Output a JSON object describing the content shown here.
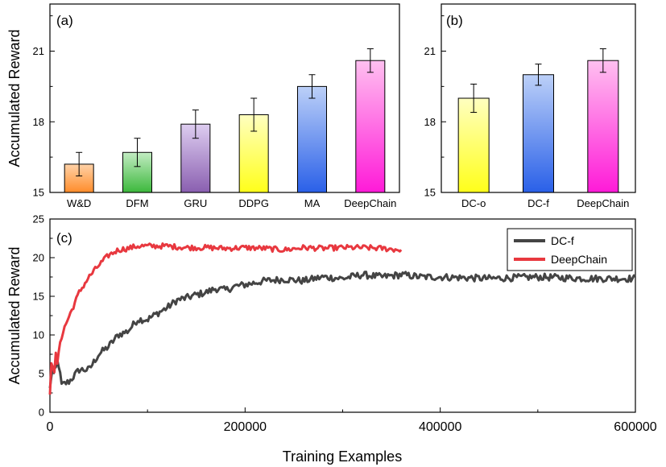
{
  "chart_data": [
    {
      "panel": "(a)",
      "type": "bar",
      "ylabel": "Accumulated Reward",
      "ylim": [
        15,
        23
      ],
      "yticks": [
        "15",
        "18",
        "21"
      ],
      "categories": [
        "W&D",
        "DFM",
        "GRU",
        "DDPG",
        "MA",
        "DeepChain"
      ],
      "values": [
        16.2,
        16.7,
        17.9,
        18.3,
        19.5,
        20.6
      ],
      "errors": [
        0.5,
        0.6,
        0.6,
        0.7,
        0.5,
        0.5
      ],
      "colors": [
        [
          "#ff8c2a",
          "#ffd2a8"
        ],
        [
          "#3cb83c",
          "#c2ecc2"
        ],
        [
          "#8a5fb0",
          "#ddcdf0"
        ],
        [
          "#ffff1a",
          "#ffffc0"
        ],
        [
          "#2a60e8",
          "#bcd0f8"
        ],
        [
          "#ff1ad8",
          "#ffc0f0"
        ]
      ]
    },
    {
      "panel": "(b)",
      "type": "bar",
      "ylim": [
        15,
        23
      ],
      "yticks": [
        "15",
        "18",
        "21"
      ],
      "categories": [
        "DC-o",
        "DC-f",
        "DeepChain"
      ],
      "values": [
        19.0,
        20.0,
        20.6
      ],
      "errors": [
        0.6,
        0.45,
        0.5
      ],
      "colors": [
        [
          "#ffff1a",
          "#ffffc0"
        ],
        [
          "#2a60e8",
          "#bcd0f8"
        ],
        [
          "#ff1ad8",
          "#ffc0f0"
        ]
      ]
    },
    {
      "panel": "(c)",
      "type": "line",
      "xlabel": "Training Examples",
      "ylabel": "Accumulated Reward",
      "xlim": [
        0,
        600000
      ],
      "ylim": [
        0,
        25
      ],
      "xticks": [
        "0",
        "200000",
        "400000",
        "600000"
      ],
      "yticks": [
        "0",
        "5",
        "10",
        "15",
        "20",
        "25"
      ],
      "legend": "top-right",
      "series": [
        {
          "name": "DC-f",
          "color": "#444444",
          "x": [
            0,
            2500,
            5000,
            8000,
            12000,
            20000,
            30000,
            40000,
            50000,
            60000,
            70000,
            80000,
            90000,
            100000,
            110000,
            120000,
            130000,
            140000,
            150000,
            160000,
            170000,
            180000,
            190000,
            200000,
            220000,
            240000,
            260000,
            280000,
            300000,
            320000,
            340000,
            360000,
            380000,
            400000,
            450000,
            500000,
            550000,
            600000
          ],
          "y": [
            3.0,
            6.0,
            5.0,
            7.0,
            3.5,
            4.0,
            5.5,
            5.5,
            7.5,
            8.5,
            10.0,
            10.5,
            12.0,
            12.0,
            12.8,
            13.5,
            14.5,
            14.8,
            15.2,
            15.5,
            16.0,
            15.8,
            16.3,
            16.5,
            17.0,
            17.2,
            17.0,
            17.5,
            17.3,
            17.8,
            17.5,
            17.8,
            17.5,
            17.5,
            17.3,
            17.5,
            17.3,
            17.3
          ]
        },
        {
          "name": "DeepChain",
          "color": "#e8383f",
          "x": [
            0,
            2000,
            4000,
            6000,
            8000,
            10000,
            15000,
            20000,
            25000,
            30000,
            35000,
            40000,
            50000,
            60000,
            70000,
            80000,
            90000,
            100000,
            120000,
            140000,
            160000,
            180000,
            200000,
            220000,
            240000,
            260000,
            280000,
            300000,
            320000,
            340000,
            360000
          ],
          "y": [
            2.5,
            8.0,
            4.0,
            7.5,
            6.0,
            9.0,
            11.0,
            12.5,
            14.0,
            15.5,
            16.5,
            17.5,
            19.0,
            20.3,
            21.0,
            21.2,
            21.5,
            21.5,
            21.5,
            21.3,
            21.3,
            21.2,
            21.3,
            21.2,
            21.0,
            21.3,
            21.2,
            21.3,
            21.3,
            21.2,
            21.0
          ]
        }
      ]
    }
  ]
}
